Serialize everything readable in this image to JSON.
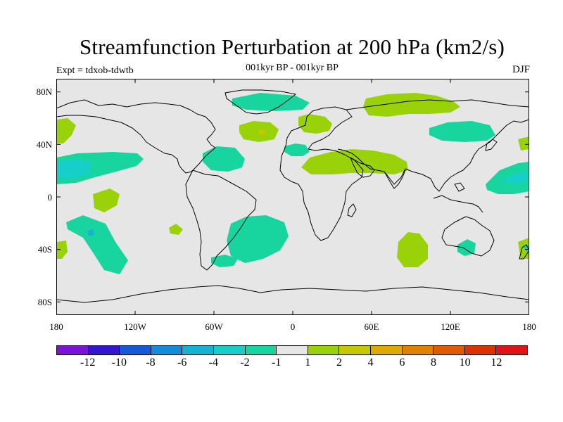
{
  "title": "Streamfunction Perturbation at 200 hPa (km2/s)",
  "subtitle": "001kyr BP - 001kyr BP",
  "experiment": "Expt = tdxob-tdwtb",
  "season": "DJF",
  "map": {
    "ocean_color": "#e6e6e6",
    "lat_labels": [
      "80N",
      "40N",
      "0",
      "40S",
      "80S"
    ],
    "lon_labels": [
      "180",
      "120W",
      "60W",
      "0",
      "60E",
      "120E",
      "180"
    ]
  },
  "colorbar": {
    "colors": [
      "#7a12d8",
      "#3216d0",
      "#145ad8",
      "#148cdc",
      "#14b4d0",
      "#16cfc8",
      "#18d5a0",
      "#e6e6e6",
      "#9ad20a",
      "#c8c800",
      "#dcaa00",
      "#e08200",
      "#e05a00",
      "#dc3200",
      "#e01414"
    ],
    "labels": [
      "-12",
      "-10",
      "-8",
      "-6",
      "-4",
      "-2",
      "-1",
      "1",
      "2",
      "4",
      "6",
      "8",
      "10",
      "12"
    ]
  }
}
